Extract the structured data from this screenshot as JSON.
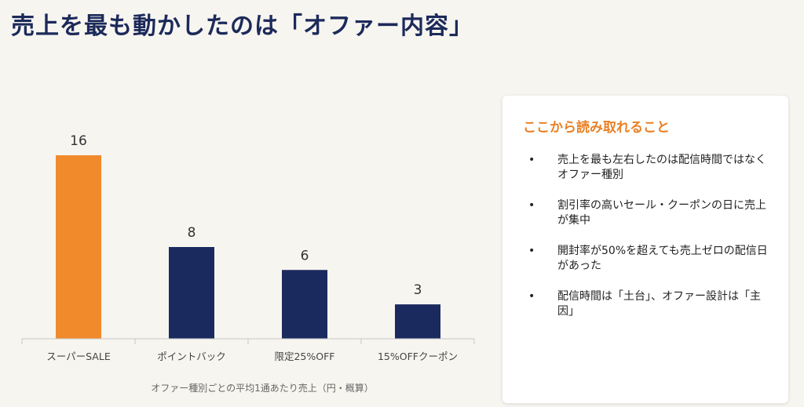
{
  "title": "売上を最も動かしたのは「オファー内容」",
  "chart_data": {
    "type": "bar",
    "title": "",
    "xlabel": "オファー種別ごとの平均1通あたり売上（円・概算）",
    "ylabel": "",
    "categories": [
      "スーパーSALE",
      "ポイントバック",
      "限定25%OFF",
      "15%OFFクーポン"
    ],
    "values": [
      16,
      8,
      6,
      3
    ],
    "value_labels": [
      "16",
      "8",
      "6",
      "3"
    ],
    "bar_colors": [
      "#f08a2b",
      "#1b2a5e",
      "#1b2a5e",
      "#1b2a5e"
    ],
    "ylim": [
      0,
      16
    ],
    "grid": false,
    "legend": "none"
  },
  "insights": {
    "title": "ここから読み取れること",
    "items": [
      "売上を最も左右したのは配信時間ではなくオファー種別",
      "割引率の高いセール・クーポンの日に売上が集中",
      "開封率が50%を超えても売上ゼロの配信日があった",
      "配信時間は「土台」、オファー設計は「主因」"
    ],
    "bullet_symbol": "•"
  },
  "colors": {
    "accent_orange": "#f08a2b",
    "navy": "#1b2a5e",
    "background": "#f7f5f0"
  }
}
